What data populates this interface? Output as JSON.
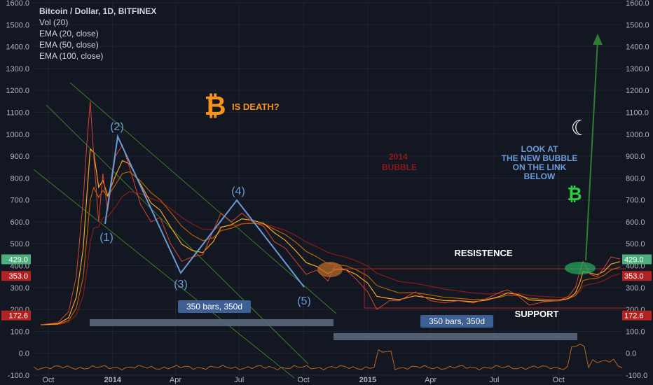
{
  "legend": {
    "symbol": "Bitcoin / Dollar, 1D, BITFINEX",
    "indicators": [
      "Vol (20)",
      "EMA (20, close)",
      "EMA (50, close)",
      "EMA (100, close)"
    ]
  },
  "colors": {
    "background": "#131722",
    "grid": "#1f2433",
    "price": "#cc3333",
    "ema20": "#f5a623",
    "ema50": "#b45f06",
    "ema100": "#8b1a1a",
    "channel": "#3a7d2a",
    "wave": "#6a9bd8",
    "resistance": "#cc2a2a",
    "bars_box": "#5d6b82",
    "up_arrow": "#2e7d32",
    "btc_orange": "#f7931a",
    "btc_green": "#2ecc40"
  },
  "annotations": {
    "is_death": "IS DEATH?",
    "bubble_2014": "2014\nBUBBLE",
    "look_at": "LOOK AT\nTHE NEW BUBBLE\nON THE LINK\nBELOW",
    "resistence": "RESISTENCE",
    "support": "SUPPORT",
    "bars_label_1": "350 bars, 350d",
    "bars_label_2": "350 bars, 350d",
    "waves": [
      "(1)",
      "(2)",
      "(3)",
      "(4)",
      "(5)"
    ],
    "btc_symbol": "₿",
    "moon_symbol": "☾"
  },
  "price_tags": [
    {
      "value": "429.0",
      "color": "#4caf7d"
    },
    {
      "value": "353.0",
      "color": "#b22222"
    },
    {
      "value": "172.6",
      "color": "#b22222"
    }
  ],
  "chart_data": {
    "type": "line",
    "title": "Bitcoin / Dollar, 1D, BITFINEX",
    "x_ticks": [
      "Oct",
      "2014",
      "Apr",
      "Jul",
      "Oct",
      "2015",
      "Apr",
      "Jul",
      "Oct"
    ],
    "y_ticks": [
      "1600.0",
      "1500.0",
      "1400.0",
      "1300.0",
      "1200.0",
      "1100.0",
      "1000.0",
      "900.0",
      "800.0",
      "700.0",
      "600.0",
      "500.0",
      "400.0",
      "300.0",
      "200.0",
      "100.0",
      "0.0",
      "-100.0"
    ],
    "ylim": [
      -100,
      1600
    ],
    "series": [
      {
        "name": "EMA (20, close)",
        "values": []
      },
      {
        "name": "EMA (50, close)",
        "values": []
      },
      {
        "name": "EMA (100, close)",
        "values": []
      }
    ],
    "price": {
      "x": [
        "2013-09-20",
        "2013-10-15",
        "2013-10-30",
        "2013-11-10",
        "2013-11-20",
        "2013-11-25",
        "2013-11-30",
        "2013-12-05",
        "2013-12-12",
        "2013-12-18",
        "2013-12-25",
        "2014-01-05",
        "2014-01-15",
        "2014-01-25",
        "2014-02-10",
        "2014-02-25",
        "2014-03-10",
        "2014-03-25",
        "2014-04-10",
        "2014-04-25",
        "2014-05-10",
        "2014-05-25",
        "2014-06-05",
        "2014-06-20",
        "2014-07-05",
        "2014-07-20",
        "2014-08-05",
        "2014-08-20",
        "2014-09-05",
        "2014-09-20",
        "2014-10-05",
        "2014-10-20",
        "2014-11-05",
        "2014-11-15",
        "2014-12-01",
        "2014-12-15",
        "2015-01-01",
        "2015-01-14",
        "2015-02-01",
        "2015-02-15",
        "2015-03-10",
        "2015-04-01",
        "2015-04-20",
        "2015-05-10",
        "2015-06-01",
        "2015-06-20",
        "2015-07-10",
        "2015-07-20",
        "2015-08-05",
        "2015-08-20",
        "2015-09-10",
        "2015-10-01",
        "2015-10-15",
        "2015-10-25",
        "2015-11-01",
        "2015-11-05",
        "2015-11-15",
        "2015-11-25",
        "2015-12-05",
        "2015-12-15",
        "2015-12-28"
      ],
      "y": [
        130,
        140,
        190,
        350,
        700,
        950,
        1150,
        900,
        600,
        820,
        650,
        900,
        950,
        850,
        680,
        600,
        620,
        500,
        420,
        440,
        450,
        560,
        640,
        600,
        640,
        600,
        580,
        510,
        480,
        420,
        360,
        380,
        330,
        400,
        380,
        340,
        280,
        200,
        240,
        240,
        280,
        240,
        230,
        240,
        230,
        250,
        280,
        290,
        260,
        220,
        235,
        240,
        260,
        300,
        380,
        420,
        360,
        350,
        390,
        440,
        430
      ]
    },
    "volume_note": "Vol (20)"
  }
}
